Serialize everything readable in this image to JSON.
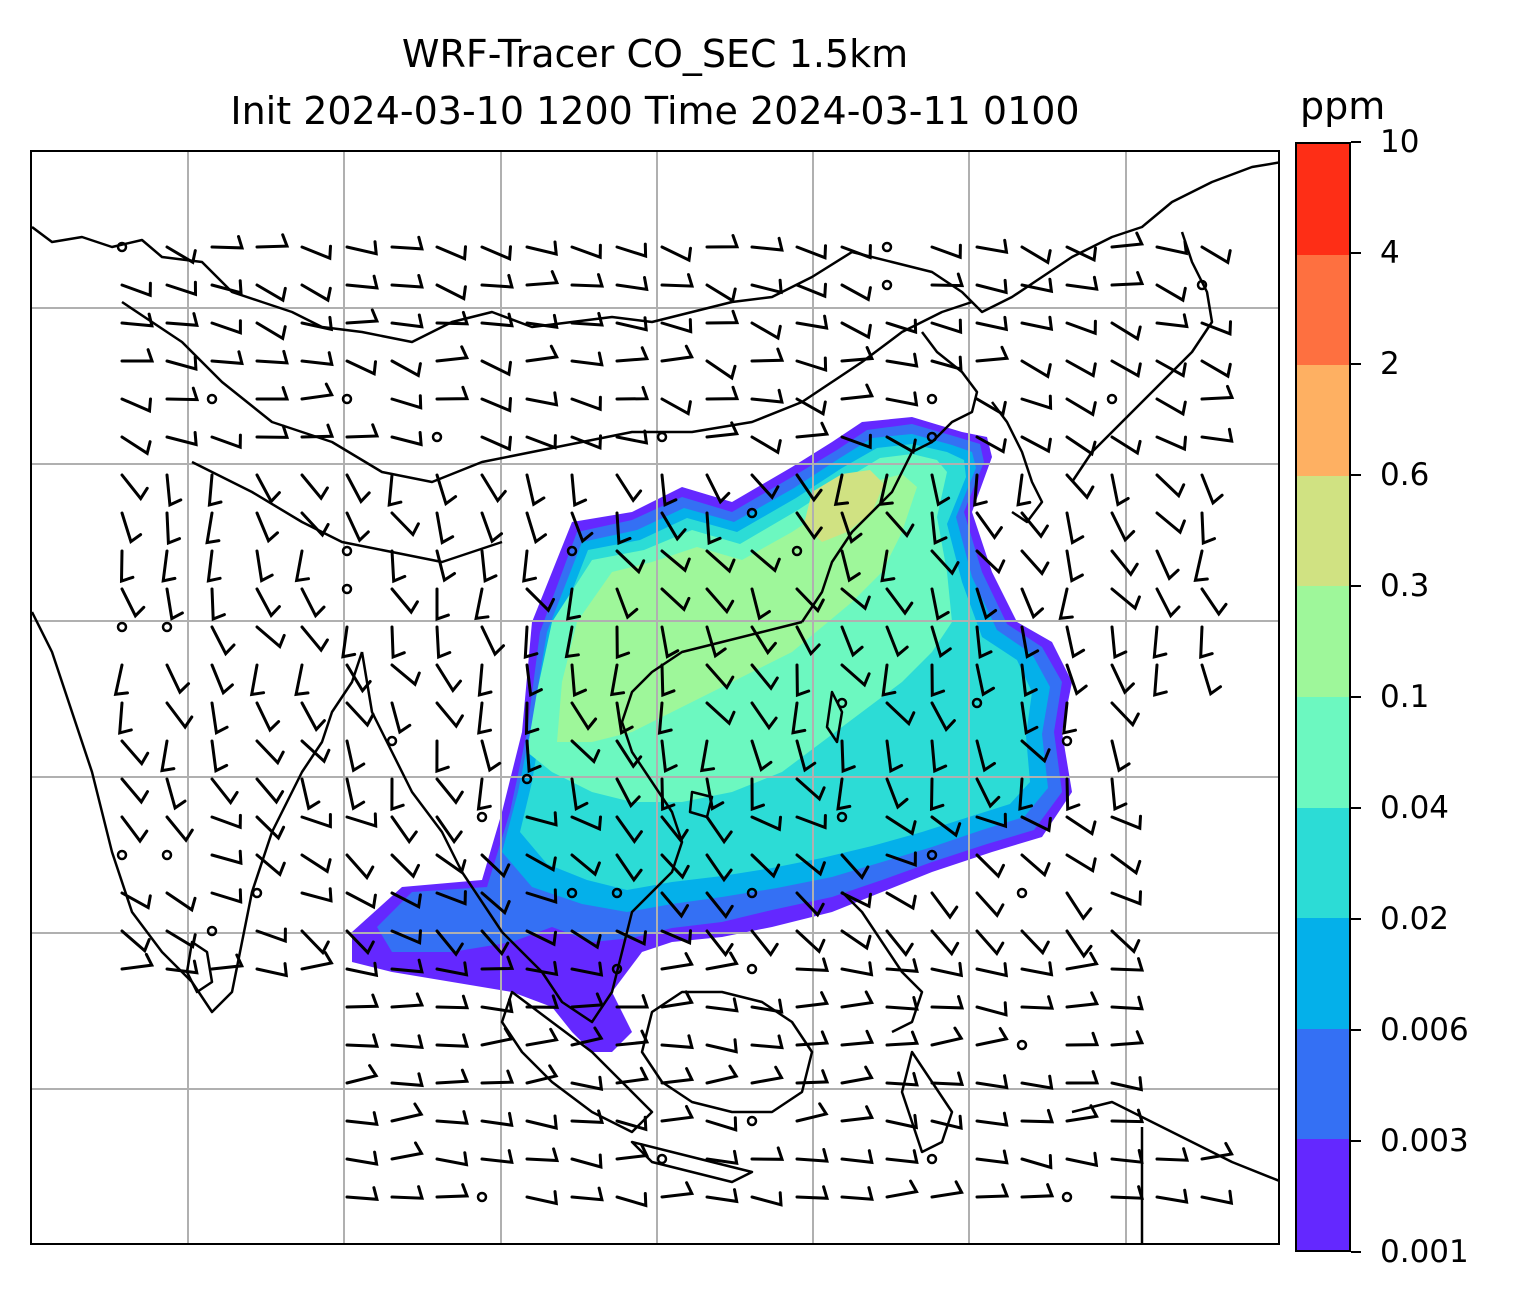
{
  "title": {
    "line1": "WRF-Tracer CO_SEC 1.5km",
    "line2": "Init 2024-03-10 1200 Time 2024-03-11 0100"
  },
  "colorbar": {
    "unit": "ppm",
    "levels": [
      "0.001",
      "0.003",
      "0.006",
      "0.02",
      "0.04",
      "0.1",
      "0.3",
      "0.6",
      "2",
      "4",
      "10"
    ],
    "colors": [
      "#6428ff",
      "#3470f4",
      "#04b0ea",
      "#2cdcd6",
      "#6cf8c0",
      "#9ef79a",
      "#d0e282",
      "#feb062",
      "#fe7040",
      "#fe2e16"
    ]
  },
  "map": {
    "gridlines": "on",
    "map_color_legend": {
      "land_outline": "#000000",
      "gridline": "#b0b0b0",
      "wind_barb": "#000000"
    }
  }
}
